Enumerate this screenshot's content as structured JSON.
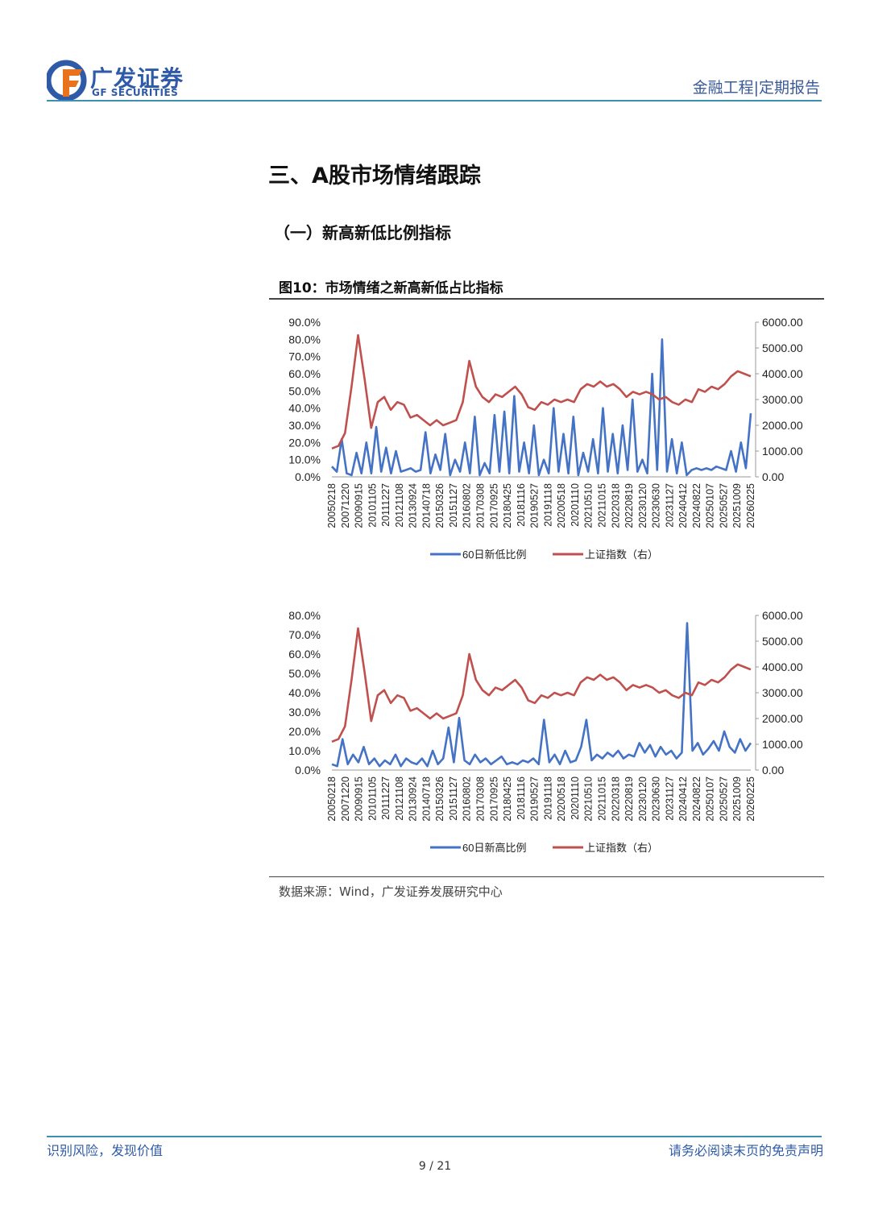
{
  "header": {
    "brand_cn": "广发证券",
    "brand_en": "GF SECURITIES",
    "report_type": "金融工程|定期报告",
    "logo_icon": "gf-logo-icon"
  },
  "section_title": "三、A股市场情绪跟踪",
  "sub_title": "（一）新高新低比例指标",
  "figure_label": "图10：市场情绪之新高新低占比指标",
  "source": "数据来源：Wind，广发证券发展研究中心",
  "footer": {
    "left": "识别风险，发现价值",
    "right": "请务必阅读末页的免责声明",
    "page": "9 / 21"
  },
  "colors": {
    "series_blue": "#4472c4",
    "series_red": "#c0504d",
    "brand": "#2e5aa8",
    "rule": "#3d8fb0"
  },
  "chart_data": [
    {
      "type": "line",
      "x_ticks": [
        "20050218",
        "20071220",
        "20090915",
        "20101105",
        "20111227",
        "20121108",
        "20130924",
        "20140718",
        "20150326",
        "20151127",
        "20160802",
        "20170308",
        "20170925",
        "20180425",
        "20181116",
        "20190527",
        "20191118",
        "20200518",
        "20201110",
        "20210510",
        "20211015",
        "20220318",
        "20220819",
        "20230120",
        "20230630",
        "20231127",
        "20240412",
        "20240822",
        "20250107",
        "20250527",
        "20251009",
        "20260225"
      ],
      "y_left_ticks": [
        "90.0%",
        "80.0%",
        "70.0%",
        "60.0%",
        "50.0%",
        "40.0%",
        "30.0%",
        "20.0%",
        "10.0%",
        "0.0%"
      ],
      "y_right_ticks": [
        "6000.00",
        "5000.00",
        "4000.00",
        "3000.00",
        "2000.00",
        "1000.00",
        "0.00"
      ],
      "ylim_left": [
        0,
        90
      ],
      "ylim_right": [
        0,
        6000
      ],
      "legend_position": "bottom",
      "series": [
        {
          "name": "60日新低比例",
          "axis": "left",
          "color": "#4472c4",
          "values": [
            6,
            3,
            22,
            2,
            1,
            14,
            2,
            20,
            2,
            29,
            3,
            17,
            2,
            15,
            3,
            4,
            5,
            3,
            4,
            26,
            2,
            13,
            4,
            25,
            1,
            10,
            3,
            20,
            2,
            35,
            1,
            8,
            2,
            36,
            3,
            38,
            2,
            47,
            3,
            20,
            2,
            30,
            1,
            10,
            2,
            40,
            3,
            25,
            2,
            35,
            1,
            14,
            3,
            22,
            2,
            40,
            3,
            25,
            2,
            30,
            4,
            45,
            3,
            10,
            2,
            60,
            4,
            80,
            3,
            22,
            2,
            20,
            1,
            4,
            5,
            4,
            5,
            4,
            6,
            5,
            4,
            15,
            3,
            20,
            5,
            37
          ]
        },
        {
          "name": "上证指数（右）",
          "axis": "right",
          "color": "#c0504d",
          "values": [
            1100,
            1200,
            1700,
            3500,
            5500,
            3800,
            1900,
            2900,
            3100,
            2600,
            2900,
            2800,
            2300,
            2400,
            2200,
            2000,
            2200,
            2000,
            2100,
            2200,
            2900,
            4500,
            3500,
            3100,
            2900,
            3200,
            3100,
            3300,
            3500,
            3200,
            2700,
            2600,
            2900,
            2800,
            3000,
            2900,
            3000,
            2900,
            3400,
            3600,
            3500,
            3700,
            3500,
            3600,
            3400,
            3100,
            3300,
            3200,
            3300,
            3200,
            3000,
            3100,
            2900,
            2800,
            3000,
            2900,
            3400,
            3300,
            3500,
            3400,
            3600,
            3900,
            4100,
            4000,
            3900
          ]
        }
      ]
    },
    {
      "type": "line",
      "x_ticks": [
        "20050218",
        "20071220",
        "20090915",
        "20101105",
        "20111227",
        "20121108",
        "20130924",
        "20140718",
        "20150326",
        "20151127",
        "20160802",
        "20170308",
        "20170925",
        "20180425",
        "20181116",
        "20190527",
        "20191118",
        "20200518",
        "20201110",
        "20210510",
        "20211015",
        "20220318",
        "20220819",
        "20230120",
        "20230630",
        "20231127",
        "20240412",
        "20240822",
        "20250107",
        "20250527",
        "20251009",
        "20260225"
      ],
      "y_left_ticks": [
        "80.0%",
        "70.0%",
        "60.0%",
        "50.0%",
        "40.0%",
        "30.0%",
        "20.0%",
        "10.0%",
        "0.0%"
      ],
      "y_right_ticks": [
        "6000.00",
        "5000.00",
        "4000.00",
        "3000.00",
        "2000.00",
        "1000.00",
        "0.00"
      ],
      "ylim_left": [
        0,
        80
      ],
      "ylim_right": [
        0,
        6000
      ],
      "legend_position": "bottom",
      "series": [
        {
          "name": "60日新高比例",
          "axis": "left",
          "color": "#4472c4",
          "values": [
            3,
            2,
            16,
            3,
            8,
            4,
            12,
            3,
            6,
            2,
            5,
            3,
            8,
            2,
            6,
            4,
            3,
            6,
            2,
            10,
            3,
            6,
            22,
            4,
            27,
            5,
            3,
            8,
            4,
            6,
            3,
            5,
            7,
            3,
            4,
            3,
            5,
            4,
            6,
            3,
            26,
            4,
            8,
            3,
            10,
            4,
            5,
            12,
            26,
            5,
            8,
            6,
            9,
            7,
            10,
            6,
            8,
            7,
            14,
            9,
            13,
            7,
            12,
            8,
            10,
            6,
            9,
            76,
            10,
            14,
            8,
            11,
            15,
            10,
            20,
            12,
            9,
            16,
            10,
            14
          ]
        },
        {
          "name": "上证指数（右）",
          "axis": "right",
          "color": "#c0504d",
          "values": [
            1100,
            1200,
            1700,
            3500,
            5500,
            3800,
            1900,
            2900,
            3100,
            2600,
            2900,
            2800,
            2300,
            2400,
            2200,
            2000,
            2200,
            2000,
            2100,
            2200,
            2900,
            4500,
            3500,
            3100,
            2900,
            3200,
            3100,
            3300,
            3500,
            3200,
            2700,
            2600,
            2900,
            2800,
            3000,
            2900,
            3000,
            2900,
            3400,
            3600,
            3500,
            3700,
            3500,
            3600,
            3400,
            3100,
            3300,
            3200,
            3300,
            3200,
            3000,
            3100,
            2900,
            2800,
            3000,
            2900,
            3400,
            3300,
            3500,
            3400,
            3600,
            3900,
            4100,
            4000,
            3900
          ]
        }
      ]
    }
  ]
}
